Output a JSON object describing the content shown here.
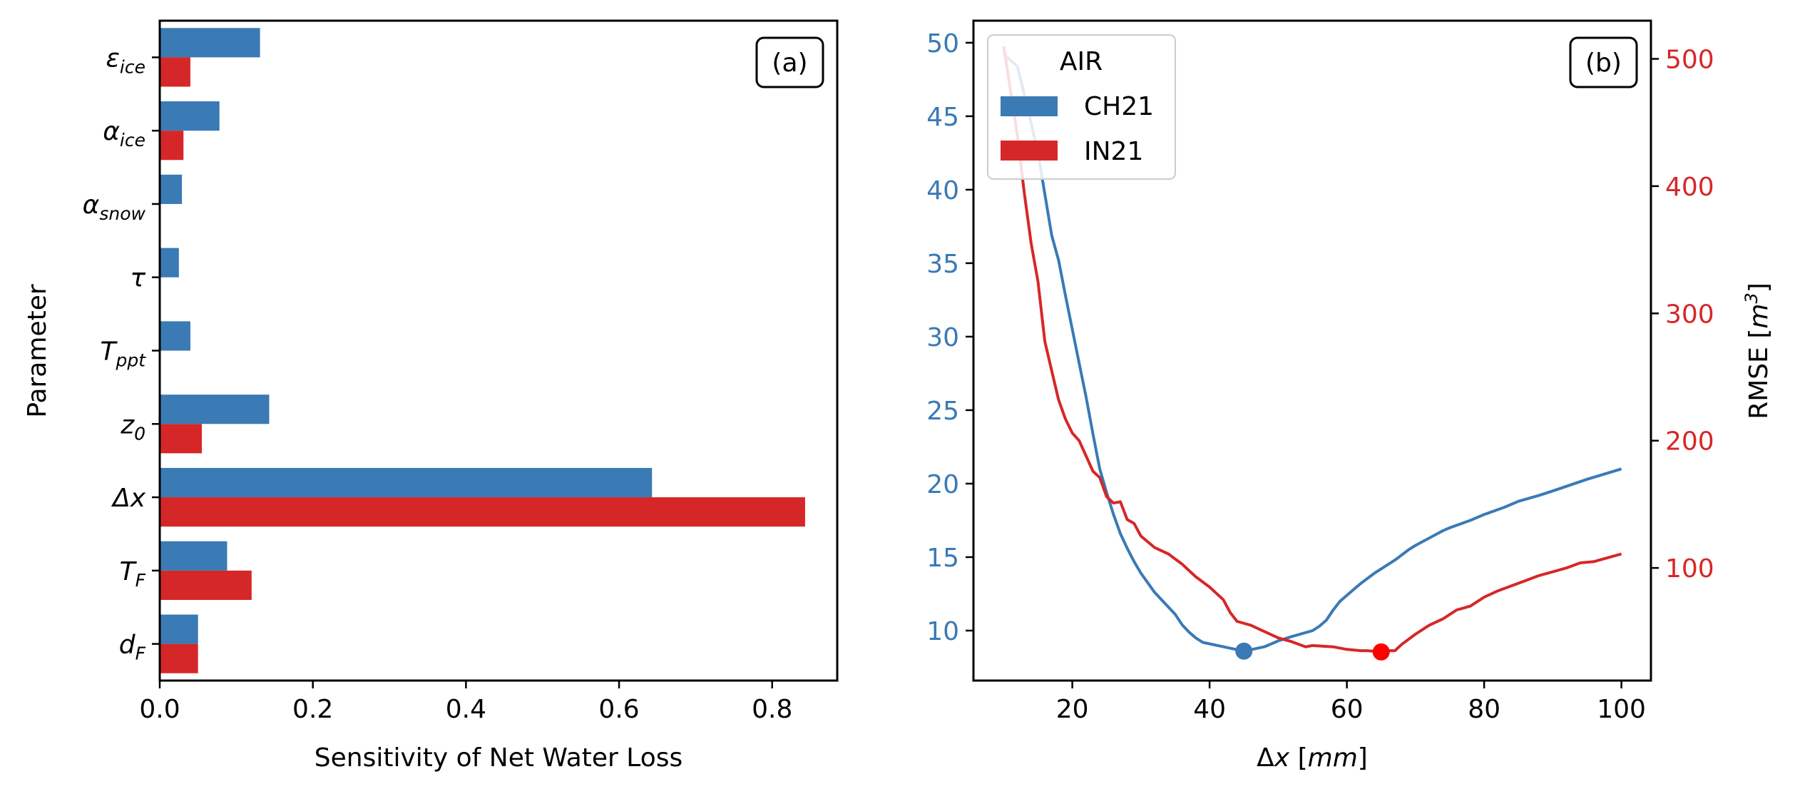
{
  "colors": {
    "ch21": "#3a7ab5",
    "in21": "#d62728",
    "in21_marker": "#ff0000",
    "right_axis": "#d62728",
    "left_axis_b": "#3a7ab5"
  },
  "chart_data": [
    {
      "type": "bar",
      "orientation": "horizontal",
      "panel_label": "(a)",
      "ylabel": "Parameter",
      "xlabel": "Sensitivity of Net Water Loss",
      "xlim": [
        0,
        0.885
      ],
      "xticks": [
        "0.0",
        "0.2",
        "0.4",
        "0.6",
        "0.8"
      ],
      "categories": [
        {
          "base": "ε",
          "sub": "ice"
        },
        {
          "base": "α",
          "sub": "ice"
        },
        {
          "base": "α",
          "sub": "snow"
        },
        {
          "base": "τ",
          "sub": ""
        },
        {
          "base": "T",
          "sub": "ppt"
        },
        {
          "base": "z",
          "sub": "0"
        },
        {
          "base": "Δx",
          "sub": ""
        },
        {
          "base": "T",
          "sub": "F"
        },
        {
          "base": "d",
          "sub": "F"
        }
      ],
      "series": [
        {
          "name": "CH21",
          "values": [
            0.131,
            0.078,
            0.029,
            0.025,
            0.04,
            0.143,
            0.643,
            0.088,
            0.05
          ]
        },
        {
          "name": "IN21",
          "values": [
            0.04,
            0.031,
            0,
            0,
            0,
            0.055,
            0.843,
            0.12,
            0.05
          ]
        }
      ]
    },
    {
      "type": "line",
      "panel_label": "(b)",
      "xlabel": "Δx [mm]",
      "ylabel_right": "RMSE [m³]",
      "xlim": [
        5.6,
        104.3
      ],
      "xticks": [
        "20",
        "40",
        "60",
        "80",
        "100"
      ],
      "ylim_left": [
        6.6,
        51.5
      ],
      "yticks_left": [
        "10",
        "15",
        "20",
        "25",
        "30",
        "35",
        "40",
        "45",
        "50"
      ],
      "ylim_right": [
        11.5,
        530
      ],
      "yticks_right": [
        "100",
        "200",
        "300",
        "400",
        "500"
      ],
      "legend": {
        "title": "AIR",
        "entries": [
          "CH21",
          "IN21"
        ],
        "location": "upper left"
      },
      "series": [
        {
          "name": "CH21",
          "axis": "left",
          "x": [
            10,
            11,
            12,
            13,
            14,
            15,
            16,
            17,
            18,
            19,
            20,
            21,
            22,
            23,
            24,
            25,
            26,
            27,
            28,
            29,
            30,
            32,
            34,
            35,
            36,
            37,
            38,
            39,
            40,
            42,
            45,
            48,
            50,
            52,
            55,
            56,
            57,
            58,
            59,
            60,
            62,
            64,
            65,
            67,
            69,
            70,
            72,
            74,
            75,
            78,
            80,
            83,
            85,
            88,
            90,
            95,
            100
          ],
          "y": [
            49.2,
            48.8,
            48.4,
            46.5,
            44.5,
            42.5,
            39.7,
            36.9,
            35.2,
            32.8,
            30.5,
            28.2,
            25.9,
            23.4,
            21.0,
            19.4,
            17.9,
            16.6,
            15.6,
            14.7,
            13.9,
            12.6,
            11.6,
            11.1,
            10.4,
            9.9,
            9.5,
            9.2,
            9.1,
            8.9,
            8.6,
            8.9,
            9.3,
            9.6,
            10.0,
            10.3,
            10.7,
            11.4,
            12.0,
            12.4,
            13.2,
            13.9,
            14.2,
            14.8,
            15.5,
            15.8,
            16.3,
            16.8,
            17.0,
            17.5,
            17.9,
            18.4,
            18.8,
            19.2,
            19.5,
            20.3,
            21.0
          ],
          "marker": {
            "x": 45,
            "y": 8.6
          }
        },
        {
          "name": "IN21",
          "axis": "right",
          "x": [
            10,
            11,
            12,
            13,
            14,
            15,
            16,
            17,
            18,
            19,
            20,
            21,
            22,
            23,
            24,
            25,
            26,
            27,
            28,
            29,
            30,
            32,
            34,
            36,
            38,
            40,
            42,
            43,
            44,
            46,
            48,
            50,
            52,
            54,
            55,
            58,
            60,
            62,
            63,
            65,
            66,
            67,
            68,
            70,
            72,
            74,
            76,
            78,
            80,
            82,
            84,
            86,
            88,
            90,
            92,
            94,
            96,
            98,
            100
          ],
          "y": [
            510,
            475,
            440,
            395,
            355,
            325,
            278,
            255,
            232,
            217,
            206,
            200,
            188,
            176,
            171,
            156,
            151,
            152,
            138,
            135,
            125,
            116,
            111,
            103,
            93,
            85,
            75,
            65,
            58,
            55,
            50,
            45,
            42,
            38,
            39,
            38,
            36,
            35,
            35,
            34,
            35,
            35,
            40,
            48,
            55,
            60,
            67,
            70,
            77,
            82,
            86,
            90,
            94,
            97,
            100,
            104,
            105,
            108,
            111
          ],
          "marker": {
            "x": 65,
            "y": 34
          }
        }
      ]
    }
  ]
}
